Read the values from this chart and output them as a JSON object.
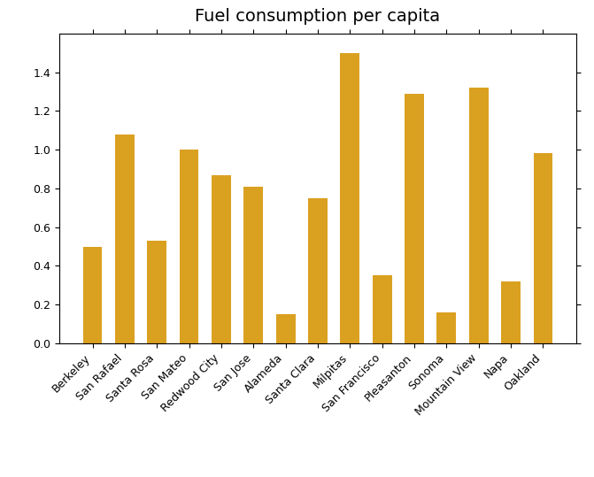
{
  "title": "Fuel consumption per capita",
  "categories": [
    "Berkeley",
    "San Rafael",
    "Santa Rosa",
    "San Mateo",
    "Redwood City",
    "San Jose",
    "Alameda",
    "Santa Clara",
    "Milpitas",
    "San Francisco",
    "Pleasanton",
    "Sonoma",
    "Mountain View",
    "Napa",
    "Oakland"
  ],
  "values": [
    0.5,
    1.08,
    0.53,
    1.0,
    0.87,
    0.81,
    0.15,
    0.75,
    1.5,
    0.35,
    1.29,
    0.16,
    1.32,
    0.32,
    0.98
  ],
  "bar_color": "#DAA020",
  "background_color": "#ffffff",
  "ylim": [
    0,
    1.6
  ],
  "yticks": [
    0.0,
    0.2,
    0.4,
    0.6,
    0.8,
    1.0,
    1.2,
    1.4
  ],
  "title_fontsize": 14,
  "tick_fontsize": 9,
  "bar_width": 0.6
}
